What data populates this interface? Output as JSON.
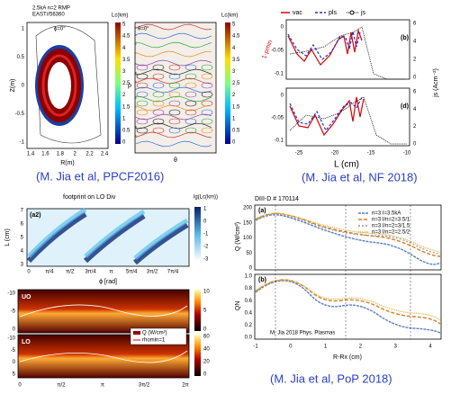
{
  "panel_a": {
    "left": {
      "title_lines": [
        "2.5kA n=2 RMP",
        "EAST#56360"
      ],
      "phi": "ϕ=0°",
      "colorbar_label": "Lc(km)",
      "y_label": "Z(m)",
      "x_label": "R(m)",
      "x_ticks": [
        "1.4",
        "1.6",
        "1.8",
        "2",
        "2.2",
        "2.4"
      ],
      "y_ticks": [
        "1",
        "0.5",
        "0",
        "-0.5",
        "-1"
      ],
      "colorbar_ticks": [
        "5",
        "4.5",
        "4",
        "3.5",
        "3",
        "2.5",
        "2",
        "1.5",
        "1",
        "0.5",
        "0"
      ]
    },
    "right": {
      "phi": "θ=0°",
      "colorbar_label": "Lc(km)",
      "y_label": "ρ",
      "x_label": "θ",
      "colorbar_ticks": [
        "5",
        "4.5",
        "4",
        "3.5",
        "3",
        "2.5",
        "2",
        "1.5",
        "1",
        "0.5",
        "0"
      ]
    },
    "caption": "(M. Jia et al, PPCF2016)"
  },
  "panel_b": {
    "legend": [
      "vac",
      "pls",
      "js"
    ],
    "top_tag": "(b)",
    "bottom_tag": "(d)",
    "left_label": "1-ρmin",
    "right_label": "js (Acm⁻²)",
    "x_label": "L (cm)",
    "x_ticks": [
      "-25",
      "-20",
      "-15",
      "-10"
    ],
    "left_ticks": [
      "0",
      "-0.05",
      "-0.1"
    ],
    "right_ticks": [
      "6",
      "4",
      "2",
      "0"
    ],
    "caption": "(M. Jia et al, NF 2018)"
  },
  "panel_c": {
    "title": "footprint on LO Div",
    "colorbar_label": "lg(Lc(km))",
    "tag": "(a2)",
    "y_label": "L (cm)",
    "x_label": "ϕ [rad]",
    "x_ticks": [
      "0",
      "π/4",
      "π/2",
      "3π/4",
      "π",
      "5π/4",
      "3π/2",
      "7π/4"
    ],
    "y_ticks": [
      "7",
      "6",
      "5",
      "4",
      "3"
    ],
    "colorbar_ticks": [
      "1",
      "0",
      "-1",
      "-2",
      "-3"
    ]
  },
  "panel_d": {
    "top_tag": "UO",
    "bottom_tag": "LO",
    "legend": [
      "Q (W/cm²)",
      "rhomin=1"
    ],
    "y_ticks_top": [
      "-10",
      "-5",
      "0"
    ],
    "y_ticks_bottom": [
      "-10",
      "-5",
      "0",
      "5"
    ],
    "x_ticks": [
      "0",
      "π/2",
      "π",
      "3π/2",
      "2π"
    ],
    "colorbar_top_ticks": [
      "10",
      "5",
      "0"
    ],
    "colorbar_bottom_ticks": [
      "60",
      "40",
      "20",
      "0"
    ]
  },
  "panel_e": {
    "title": "DIII-D # 170114",
    "top_tag": "(a)",
    "bottom_tag": "(b)",
    "legend": [
      "n=3 I=3.5kA",
      "n=3 I/n=2=3.5/1",
      "n=3 I/n=2=3/1.5",
      "n=3 I/n=2=2.5/2"
    ],
    "top_y_label": "Q (W/cm²)",
    "bottom_y_label": "QN",
    "x_label": "R-Rx (cm)",
    "note": "M. Jia 2018 Phys. Plasmas",
    "top_y_ticks": [
      "200",
      "150",
      "100",
      "50",
      "0"
    ],
    "bottom_y_ticks": [
      "1.0",
      "0.8",
      "0.6",
      "0.4",
      "0.2",
      "0.0"
    ],
    "x_ticks": [
      "-1",
      "0",
      "1",
      "2",
      "3",
      "4"
    ],
    "caption": "(M. Jia et al, PoP 2018)"
  }
}
